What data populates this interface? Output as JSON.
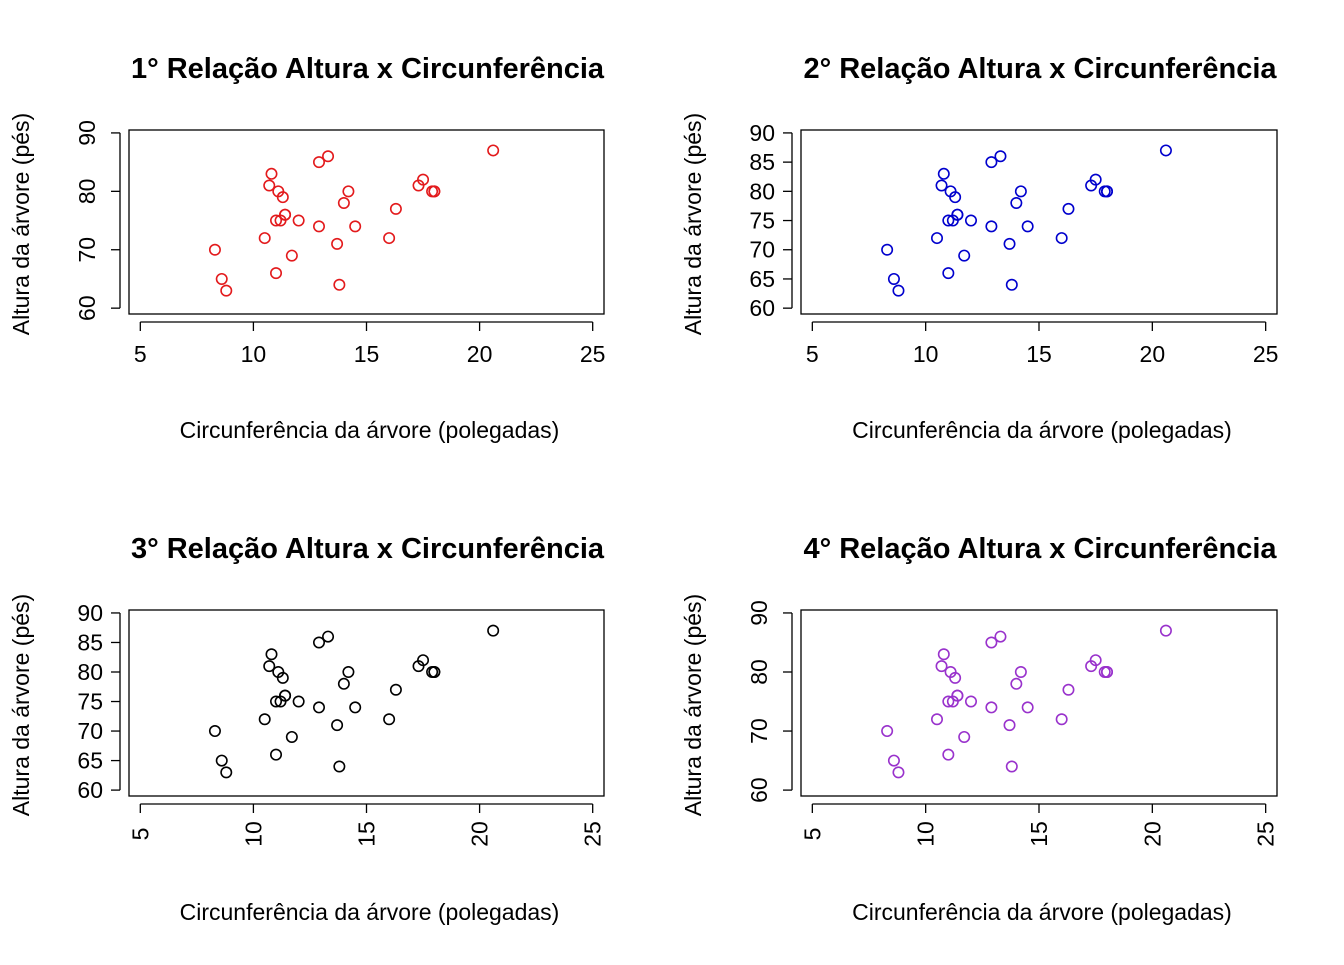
{
  "chart_data": [
    {
      "type": "scatter",
      "title": "1° Relação Altura x Circunferência",
      "xlabel": "Circunferência da árvore (polegadas)",
      "ylabel": "Altura da árvore (pés)",
      "xlim": [
        4.5,
        25.5
      ],
      "ylim": [
        59,
        90.5
      ],
      "xticks": [
        "5",
        "10",
        "15",
        "20",
        "25"
      ],
      "yticks": [
        "60",
        "70",
        "80",
        "90"
      ],
      "x_tick_labels_rotated": false,
      "y_tick_labels_rotated": true,
      "grid": false,
      "marker_color": "#e31a1c",
      "series": [
        {
          "x": [
            8.3,
            8.6,
            8.8,
            10.5,
            10.7,
            10.8,
            11.0,
            11.0,
            11.1,
            11.2,
            11.3,
            11.4,
            11.4,
            11.7,
            12.0,
            12.9,
            12.9,
            13.3,
            13.7,
            13.8,
            14.0,
            14.2,
            14.5,
            16.0,
            16.3,
            17.3,
            17.5,
            17.9,
            18.0,
            18.0,
            20.6
          ],
          "y": [
            70,
            65,
            63,
            72,
            81,
            83,
            66,
            75,
            80,
            75,
            79,
            76,
            76,
            69,
            75,
            74,
            85,
            86,
            71,
            64,
            78,
            80,
            74,
            72,
            77,
            81,
            82,
            80,
            80,
            80,
            87
          ]
        }
      ]
    },
    {
      "type": "scatter",
      "title": "2° Relação Altura x Circunferência",
      "xlabel": "Circunferência da árvore (polegadas)",
      "ylabel": "Altura da árvore (pés)",
      "xlim": [
        4.5,
        25.5
      ],
      "ylim": [
        59,
        90.5
      ],
      "xticks": [
        "5",
        "10",
        "15",
        "20",
        "25"
      ],
      "yticks": [
        "60",
        "65",
        "70",
        "75",
        "80",
        "85",
        "90"
      ],
      "x_tick_labels_rotated": false,
      "y_tick_labels_rotated": false,
      "grid": false,
      "marker_color": "#0000cd",
      "series": [
        {
          "x": [
            8.3,
            8.6,
            8.8,
            10.5,
            10.7,
            10.8,
            11.0,
            11.0,
            11.1,
            11.2,
            11.3,
            11.4,
            11.4,
            11.7,
            12.0,
            12.9,
            12.9,
            13.3,
            13.7,
            13.8,
            14.0,
            14.2,
            14.5,
            16.0,
            16.3,
            17.3,
            17.5,
            17.9,
            18.0,
            18.0,
            20.6
          ],
          "y": [
            70,
            65,
            63,
            72,
            81,
            83,
            66,
            75,
            80,
            75,
            79,
            76,
            76,
            69,
            75,
            74,
            85,
            86,
            71,
            64,
            78,
            80,
            74,
            72,
            77,
            81,
            82,
            80,
            80,
            80,
            87
          ]
        }
      ]
    },
    {
      "type": "scatter",
      "title": "3° Relação Altura x Circunferência",
      "xlabel": "Circunferência da árvore (polegadas)",
      "ylabel": "Altura da árvore (pés)",
      "xlim": [
        4.5,
        25.5
      ],
      "ylim": [
        59,
        90.5
      ],
      "xticks": [
        "5",
        "10",
        "15",
        "20",
        "25"
      ],
      "yticks": [
        "60",
        "65",
        "70",
        "75",
        "80",
        "85",
        "90"
      ],
      "x_tick_labels_rotated": true,
      "y_tick_labels_rotated": false,
      "grid": false,
      "marker_color": "#000000",
      "series": [
        {
          "x": [
            8.3,
            8.6,
            8.8,
            10.5,
            10.7,
            10.8,
            11.0,
            11.0,
            11.1,
            11.2,
            11.3,
            11.4,
            11.4,
            11.7,
            12.0,
            12.9,
            12.9,
            13.3,
            13.7,
            13.8,
            14.0,
            14.2,
            14.5,
            16.0,
            16.3,
            17.3,
            17.5,
            17.9,
            18.0,
            18.0,
            20.6
          ],
          "y": [
            70,
            65,
            63,
            72,
            81,
            83,
            66,
            75,
            80,
            75,
            79,
            76,
            76,
            69,
            75,
            74,
            85,
            86,
            71,
            64,
            78,
            80,
            74,
            72,
            77,
            81,
            82,
            80,
            80,
            80,
            87
          ]
        }
      ]
    },
    {
      "type": "scatter",
      "title": "4° Relação Altura x Circunferência",
      "xlabel": "Circunferência da árvore (polegadas)",
      "ylabel": "Altura da árvore (pés)",
      "xlim": [
        4.5,
        25.5
      ],
      "ylim": [
        59,
        90.5
      ],
      "xticks": [
        "5",
        "10",
        "15",
        "20",
        "25"
      ],
      "yticks": [
        "60",
        "70",
        "80",
        "90"
      ],
      "x_tick_labels_rotated": true,
      "y_tick_labels_rotated": true,
      "grid": false,
      "marker_color": "#9932cc",
      "series": [
        {
          "x": [
            8.3,
            8.6,
            8.8,
            10.5,
            10.7,
            10.8,
            11.0,
            11.0,
            11.1,
            11.2,
            11.3,
            11.4,
            11.4,
            11.7,
            12.0,
            12.9,
            12.9,
            13.3,
            13.7,
            13.8,
            14.0,
            14.2,
            14.5,
            16.0,
            16.3,
            17.3,
            17.5,
            17.9,
            18.0,
            18.0,
            20.6
          ],
          "y": [
            70,
            65,
            63,
            72,
            81,
            83,
            66,
            75,
            80,
            75,
            79,
            76,
            76,
            69,
            75,
            74,
            85,
            86,
            71,
            64,
            78,
            80,
            74,
            72,
            77,
            81,
            82,
            80,
            80,
            80,
            87
          ]
        }
      ]
    }
  ]
}
